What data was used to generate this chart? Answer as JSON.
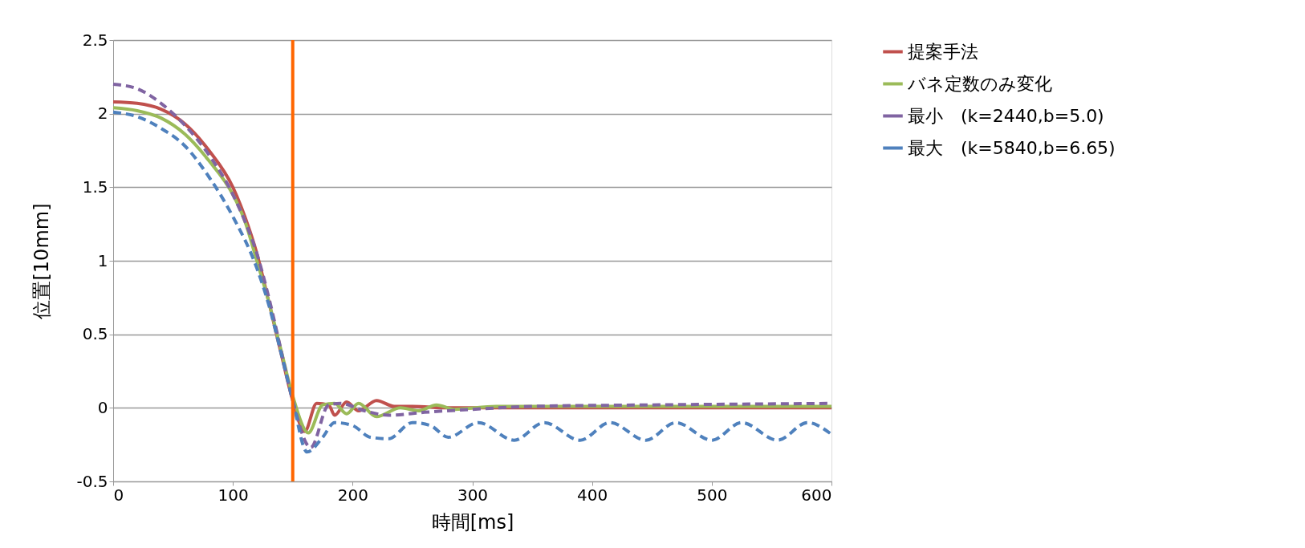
{
  "chart_data": {
    "type": "line",
    "xlabel": "時間[ms]",
    "ylabel": "位置[10mm]",
    "xlim": [
      0,
      600
    ],
    "xticks": [
      0,
      100,
      200,
      300,
      400,
      500,
      600
    ],
    "ylim": [
      -0.5,
      2.5
    ],
    "yticks": [
      -0.5,
      0,
      0.5,
      1,
      1.5,
      2,
      2.5
    ],
    "grid": "y",
    "legend": "right",
    "marker": "none",
    "ref_lines": [
      {
        "axis": "x",
        "value": 150,
        "color": "#ff6600",
        "line_style": "solid"
      }
    ],
    "series": [
      {
        "name": "提案手法",
        "color": "#c0504d",
        "line_style": "solid",
        "x": [
          0,
          20,
          40,
          60,
          80,
          100,
          110,
          120,
          130,
          140,
          150,
          160,
          170,
          180,
          185,
          195,
          205,
          220,
          235,
          250,
          280,
          600
        ],
        "values": [
          2.08,
          2.07,
          2.03,
          1.93,
          1.75,
          1.5,
          1.3,
          1.05,
          0.72,
          0.38,
          0.05,
          -0.16,
          0.03,
          0.02,
          -0.05,
          0.04,
          -0.02,
          0.05,
          0.01,
          0.01,
          0.0,
          0.0
        ]
      },
      {
        "name": "バネ定数のみ変化",
        "color": "#9bbb59",
        "line_style": "solid",
        "x": [
          0,
          20,
          40,
          60,
          80,
          100,
          110,
          120,
          130,
          140,
          150,
          163,
          175,
          185,
          195,
          205,
          220,
          240,
          255,
          270,
          285,
          320,
          360,
          600
        ],
        "values": [
          2.04,
          2.02,
          1.97,
          1.86,
          1.68,
          1.45,
          1.27,
          1.0,
          0.72,
          0.4,
          0.08,
          -0.17,
          0.02,
          0.03,
          -0.04,
          0.03,
          -0.06,
          0.0,
          -0.02,
          0.02,
          -0.01,
          0.01,
          0.01,
          0.01
        ]
      },
      {
        "name": "最小　(k=2440,b=5.0)",
        "color": "#8064a2",
        "line_style": "dashed",
        "x": [
          0,
          20,
          40,
          60,
          80,
          100,
          110,
          120,
          130,
          140,
          150,
          165,
          180,
          190,
          210,
          230,
          260,
          300,
          350,
          450,
          600
        ],
        "values": [
          2.2,
          2.17,
          2.07,
          1.92,
          1.72,
          1.45,
          1.27,
          1.05,
          0.75,
          0.4,
          0.05,
          -0.27,
          0.02,
          0.03,
          -0.02,
          -0.05,
          -0.03,
          -0.01,
          0.01,
          0.02,
          0.03
        ]
      },
      {
        "name": "最大　(k=5840,b=6.65)",
        "color": "#4f81bd",
        "line_style": "dashed",
        "x": [
          0,
          20,
          40,
          60,
          80,
          100,
          120,
          130,
          140,
          150,
          162,
          175,
          185,
          200,
          215,
          230,
          250,
          265,
          280,
          305,
          335,
          360,
          390,
          415,
          445,
          470,
          500,
          525,
          555,
          580,
          600
        ],
        "values": [
          2.01,
          1.98,
          1.9,
          1.78,
          1.57,
          1.3,
          0.95,
          0.7,
          0.38,
          0.05,
          -0.3,
          -0.2,
          -0.1,
          -0.12,
          -0.2,
          -0.21,
          -0.1,
          -0.12,
          -0.2,
          -0.1,
          -0.22,
          -0.1,
          -0.22,
          -0.1,
          -0.22,
          -0.1,
          -0.22,
          -0.1,
          -0.22,
          -0.1,
          -0.18
        ]
      }
    ]
  }
}
